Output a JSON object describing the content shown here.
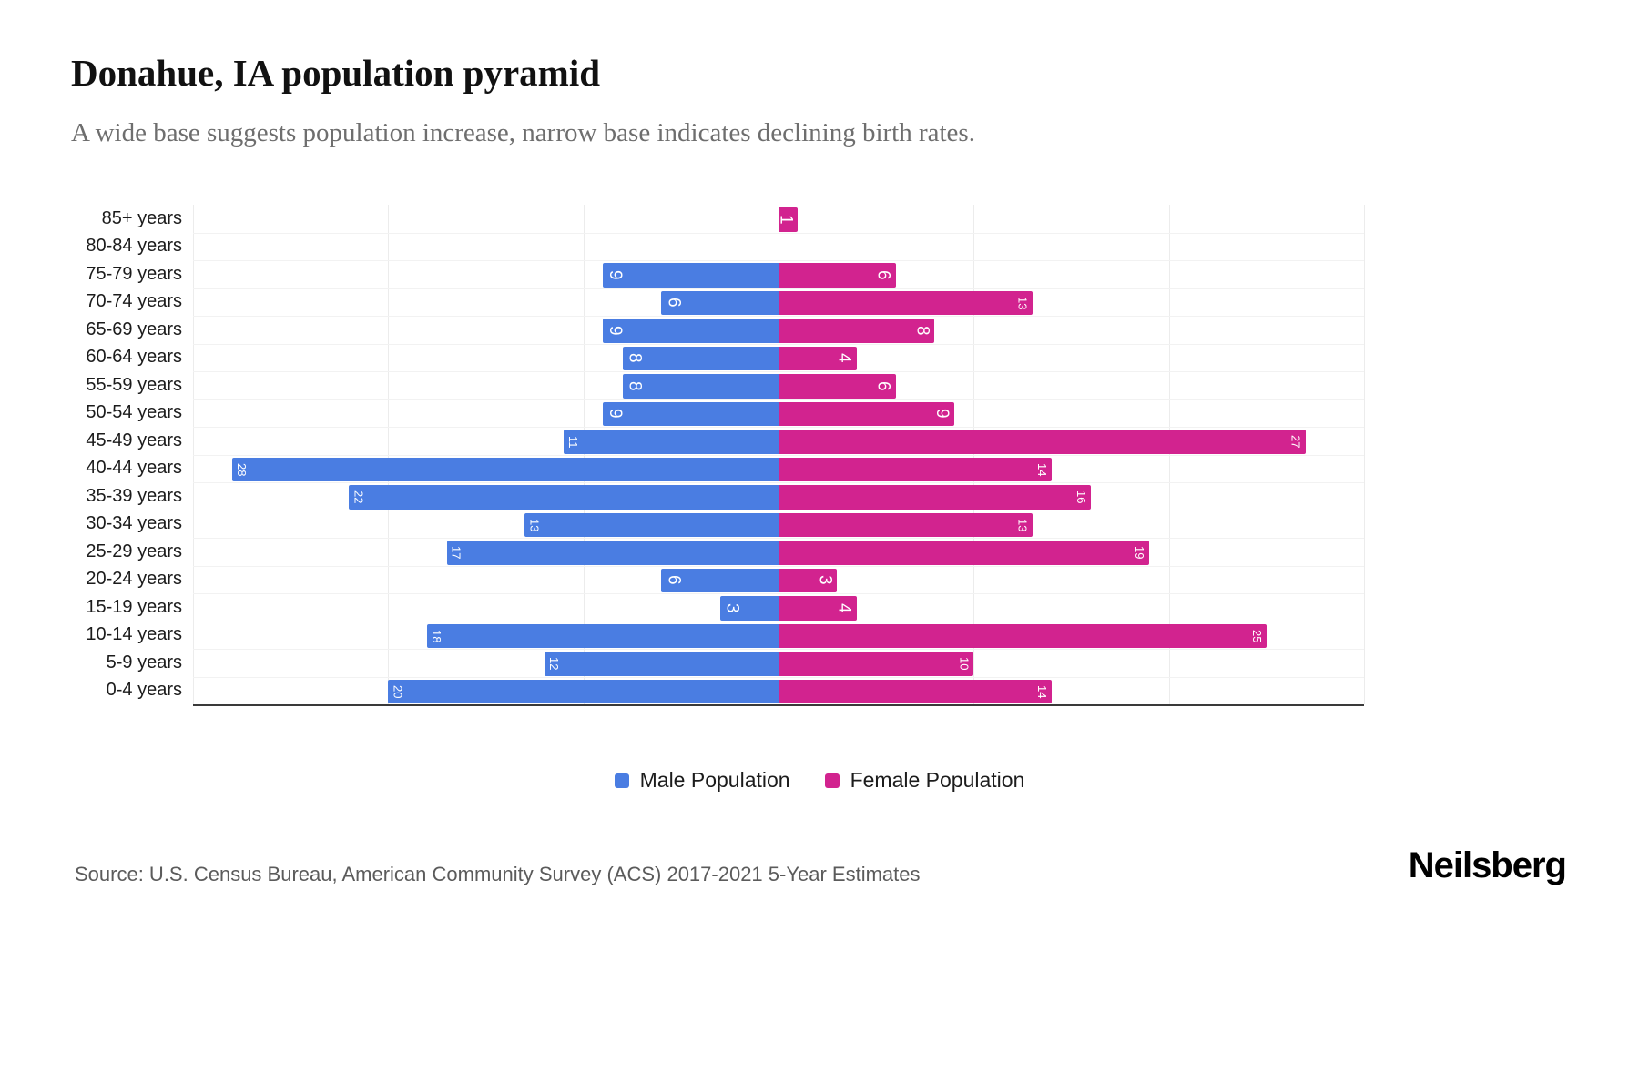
{
  "header": {
    "title": "Donahue, IA population pyramid",
    "subtitle": "A wide base suggests population increase, narrow base indicates declining birth rates."
  },
  "chart_data": {
    "type": "bar",
    "variant": "population-pyramid",
    "title": "Donahue, IA population pyramid",
    "xlabel": "",
    "ylabel": "",
    "xlim": [
      -30,
      30
    ],
    "grid": "light vertical and horizontal",
    "legend_position": "bottom",
    "categories": [
      "85+ years",
      "80-84 years",
      "75-79 years",
      "70-74 years",
      "65-69 years",
      "60-64 years",
      "55-59 years",
      "50-54 years",
      "45-49 years",
      "40-44 years",
      "35-39 years",
      "30-34 years",
      "25-29 years",
      "20-24 years",
      "15-19 years",
      "10-14 years",
      "5-9 years",
      "0-4 years"
    ],
    "series": [
      {
        "name": "Male Population",
        "color": "#4a7de2",
        "values": [
          0,
          0,
          9,
          6,
          9,
          8,
          8,
          9,
          11,
          28,
          22,
          13,
          17,
          6,
          3,
          18,
          12,
          20
        ]
      },
      {
        "name": "Female Population",
        "color": "#d2238f",
        "values": [
          1,
          0,
          6,
          13,
          8,
          4,
          6,
          9,
          27,
          14,
          16,
          13,
          19,
          3,
          4,
          25,
          10,
          14
        ]
      }
    ]
  },
  "legend": {
    "male_label": "Male Population",
    "female_label": "Female Population"
  },
  "footer": {
    "source": "Source: U.S. Census Bureau, American Community Survey (ACS) 2017-2021 5-Year Estimates",
    "brand": "Neilsberg"
  },
  "colors": {
    "male": "#4a7de2",
    "female": "#d2238f",
    "grid": "#ececec",
    "axis_line": "#3a3a3a",
    "subtitle_text": "#6e6e6e",
    "source_text": "#5b5b5b"
  }
}
